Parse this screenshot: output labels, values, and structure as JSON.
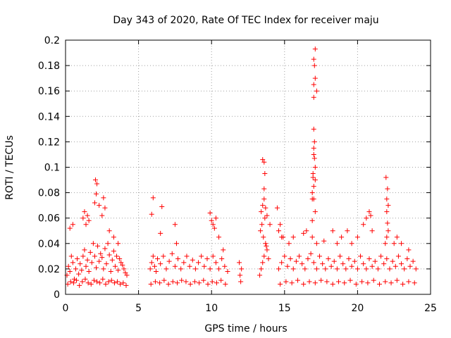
{
  "chart_data": {
    "type": "scatter",
    "title": "Day 343 of 2020, Rate Of TEC Index for receiver maju",
    "xlabel": "GPS time / hours",
    "ylabel": "ROTI / TECUs",
    "xlim": [
      0,
      25
    ],
    "ylim": [
      0,
      0.2
    ],
    "xticks": [
      0,
      5,
      10,
      15,
      20,
      25
    ],
    "xtick_labels": [
      "0",
      "5",
      "10",
      "15",
      "20",
      "25"
    ],
    "yticks": [
      0,
      0.02,
      0.04,
      0.06,
      0.08,
      0.1,
      0.12,
      0.14,
      0.16,
      0.18,
      0.2
    ],
    "ytick_labels": [
      "0",
      "0.02",
      "0.04",
      "0.06",
      "0.08",
      "0.1",
      "0.12",
      "0.14",
      "0.16",
      "0.18",
      "0.2"
    ],
    "grid": true,
    "marker": "+",
    "color": "#ff0000",
    "series": [
      {
        "name": "ROTI",
        "x": [
          0.1,
          0.2,
          0.3,
          0.4,
          0.5,
          0.6,
          0.7,
          0.8,
          0.9,
          1.0,
          1.1,
          1.2,
          1.3,
          1.4,
          1.5,
          1.6,
          1.7,
          1.8,
          1.9,
          2.0,
          2.1,
          2.2,
          2.3,
          2.4,
          2.5,
          2.6,
          2.7,
          2.8,
          2.9,
          3.0,
          3.1,
          3.2,
          3.3,
          3.4,
          3.5,
          3.6,
          3.7,
          3.8,
          3.9,
          4.0,
          4.1,
          4.2,
          0.15,
          0.35,
          0.55,
          0.75,
          0.95,
          1.15,
          1.35,
          1.55,
          1.75,
          1.95,
          2.15,
          2.35,
          2.55,
          2.75,
          2.95,
          3.15,
          3.35,
          3.55,
          3.75,
          3.95,
          4.15,
          0.3,
          0.5,
          1.2,
          1.3,
          1.4,
          1.5,
          1.6,
          2.0,
          2.05,
          2.1,
          2.15,
          2.3,
          2.5,
          2.6,
          2.7,
          3.0,
          3.3,
          3.6,
          5.8,
          5.9,
          6.0,
          6.1,
          6.2,
          6.3,
          6.5,
          6.7,
          6.9,
          7.1,
          7.3,
          7.5,
          7.7,
          7.9,
          8.1,
          8.3,
          8.5,
          8.7,
          8.9,
          9.1,
          9.3,
          9.5,
          9.7,
          9.9,
          10.1,
          10.3,
          10.5,
          10.7,
          10.9,
          11.1,
          5.85,
          6.15,
          6.45,
          6.75,
          7.05,
          7.35,
          7.65,
          7.95,
          8.25,
          8.55,
          8.85,
          9.15,
          9.45,
          9.75,
          10.05,
          10.35,
          10.65,
          10.95,
          5.9,
          6.0,
          6.5,
          6.6,
          7.5,
          7.6,
          9.9,
          10.0,
          10.1,
          10.2,
          10.3,
          10.5,
          10.8,
          11.9,
          11.95,
          12.0,
          12.05,
          13.3,
          13.4,
          13.5,
          13.6,
          13.7,
          13.8,
          13.9,
          13.35,
          13.45,
          13.55,
          13.65,
          13.75,
          13.4,
          13.5,
          13.6,
          13.7,
          13.8,
          13.6,
          13.65,
          13.5,
          13.6,
          14.0,
          14.5,
          14.9,
          14.6,
          14.8,
          15.0,
          15.2,
          15.4,
          15.6,
          15.8,
          16.0,
          16.2,
          16.4,
          16.6,
          16.8,
          17.0,
          17.2,
          17.4,
          17.6,
          17.8,
          18.0,
          18.2,
          18.4,
          18.6,
          18.8,
          19.0,
          19.2,
          19.4,
          19.6,
          19.8,
          20.0,
          20.2,
          20.4,
          20.6,
          20.8,
          21.0,
          21.2,
          21.4,
          21.6,
          21.8,
          22.0,
          22.2,
          22.4,
          22.6,
          22.8,
          23.0,
          23.2,
          23.4,
          23.6,
          23.8,
          24.0,
          14.7,
          15.1,
          15.5,
          15.9,
          16.3,
          16.7,
          17.1,
          17.5,
          17.9,
          18.3,
          18.7,
          19.1,
          19.5,
          19.9,
          20.3,
          20.7,
          21.1,
          21.5,
          21.9,
          22.3,
          22.7,
          23.1,
          23.5,
          23.9,
          14.6,
          14.7,
          14.8,
          15.3,
          15.6,
          16.3,
          16.5,
          16.9,
          17.2,
          17.7,
          18.3,
          18.6,
          18.9,
          19.3,
          19.6,
          20.0,
          20.4,
          20.6,
          20.8,
          20.9,
          21.0,
          21.9,
          22.0,
          22.1,
          22.5,
          22.7,
          23.0,
          23.5,
          16.9,
          16.95,
          17.0,
          17.0,
          17.05,
          17.1,
          16.9,
          17.0,
          17.1,
          17.0,
          17.05,
          16.95,
          17.0,
          17.1,
          17.0,
          17.05,
          17.0,
          17.1,
          17.2,
          17.0,
          17.1,
          16.9,
          21.95,
          22.0,
          22.05,
          22.1,
          22.0,
          22.05
        ],
        "y": [
          0.015,
          0.022,
          0.018,
          0.03,
          0.025,
          0.012,
          0.02,
          0.028,
          0.016,
          0.024,
          0.019,
          0.03,
          0.035,
          0.022,
          0.027,
          0.018,
          0.033,
          0.025,
          0.04,
          0.03,
          0.021,
          0.038,
          0.026,
          0.032,
          0.029,
          0.02,
          0.036,
          0.024,
          0.04,
          0.031,
          0.018,
          0.027,
          0.034,
          0.022,
          0.03,
          0.019,
          0.028,
          0.025,
          0.023,
          0.02,
          0.017,
          0.015,
          0.008,
          0.01,
          0.009,
          0.011,
          0.007,
          0.01,
          0.012,
          0.009,
          0.008,
          0.011,
          0.01,
          0.009,
          0.012,
          0.008,
          0.01,
          0.011,
          0.009,
          0.01,
          0.008,
          0.009,
          0.007,
          0.052,
          0.055,
          0.06,
          0.065,
          0.055,
          0.062,
          0.058,
          0.072,
          0.09,
          0.079,
          0.087,
          0.07,
          0.062,
          0.076,
          0.068,
          0.05,
          0.045,
          0.04,
          0.02,
          0.025,
          0.03,
          0.022,
          0.018,
          0.028,
          0.024,
          0.03,
          0.02,
          0.026,
          0.032,
          0.022,
          0.028,
          0.02,
          0.025,
          0.03,
          0.022,
          0.027,
          0.02,
          0.025,
          0.03,
          0.022,
          0.028,
          0.02,
          0.03,
          0.025,
          0.02,
          0.028,
          0.022,
          0.018,
          0.008,
          0.01,
          0.009,
          0.011,
          0.008,
          0.01,
          0.009,
          0.011,
          0.01,
          0.008,
          0.01,
          0.009,
          0.011,
          0.008,
          0.01,
          0.009,
          0.011,
          0.008,
          0.063,
          0.076,
          0.048,
          0.069,
          0.055,
          0.04,
          0.064,
          0.058,
          0.055,
          0.052,
          0.06,
          0.045,
          0.035,
          0.025,
          0.015,
          0.01,
          0.02,
          0.015,
          0.02,
          0.025,
          0.03,
          0.04,
          0.035,
          0.028,
          0.05,
          0.055,
          0.045,
          0.06,
          0.038,
          0.065,
          0.07,
          0.075,
          0.068,
          0.062,
          0.083,
          0.095,
          0.106,
          0.104,
          0.055,
          0.068,
          0.045,
          0.02,
          0.025,
          0.03,
          0.022,
          0.028,
          0.02,
          0.026,
          0.03,
          0.024,
          0.02,
          0.028,
          0.032,
          0.025,
          0.02,
          0.03,
          0.024,
          0.02,
          0.028,
          0.022,
          0.026,
          0.02,
          0.03,
          0.024,
          0.02,
          0.028,
          0.022,
          0.026,
          0.02,
          0.03,
          0.024,
          0.02,
          0.028,
          0.022,
          0.026,
          0.02,
          0.03,
          0.024,
          0.028,
          0.02,
          0.026,
          0.022,
          0.03,
          0.024,
          0.02,
          0.028,
          0.022,
          0.026,
          0.02,
          0.008,
          0.01,
          0.009,
          0.011,
          0.008,
          0.01,
          0.009,
          0.011,
          0.01,
          0.008,
          0.01,
          0.009,
          0.011,
          0.008,
          0.01,
          0.009,
          0.011,
          0.008,
          0.01,
          0.009,
          0.011,
          0.008,
          0.01,
          0.009,
          0.05,
          0.055,
          0.045,
          0.04,
          0.045,
          0.048,
          0.05,
          0.045,
          0.04,
          0.042,
          0.05,
          0.04,
          0.045,
          0.05,
          0.04,
          0.045,
          0.055,
          0.06,
          0.065,
          0.062,
          0.05,
          0.04,
          0.045,
          0.05,
          0.04,
          0.045,
          0.04,
          0.035,
          0.08,
          0.095,
          0.115,
          0.13,
          0.12,
          0.1,
          0.058,
          0.075,
          0.065,
          0.085,
          0.107,
          0.092,
          0.155,
          0.17,
          0.165,
          0.18,
          0.185,
          0.193,
          0.16,
          0.11,
          0.09,
          0.075,
          0.092,
          0.075,
          0.083,
          0.07,
          0.065,
          0.056
        ]
      }
    ]
  }
}
